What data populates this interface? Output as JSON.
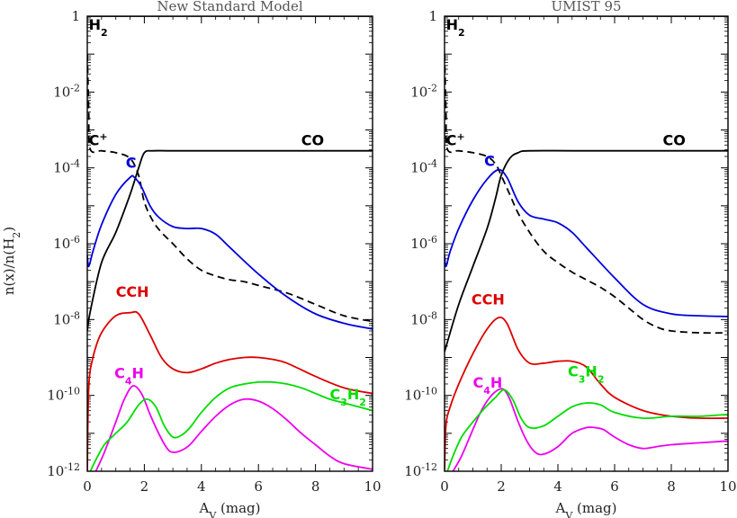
{
  "chart_data": [
    {
      "type": "line",
      "title": "New Standard Model",
      "xlabel": "A_V (mag)",
      "ylabel": "n(x)/n(H2)",
      "xlim": [
        0,
        10
      ],
      "ylim_log10": [
        -12,
        0
      ],
      "yscale": "log",
      "x_ticks": [
        "0",
        "2",
        "4",
        "6",
        "8",
        "10"
      ],
      "y_ticks": [
        "1",
        "10^-2",
        "10^-4",
        "10^-6",
        "10^-8",
        "10^-10",
        "10^-12"
      ],
      "series": [
        {
          "name": "H2",
          "color": "#000000",
          "dash": false,
          "x": [
            0,
            0.1,
            10
          ],
          "log10y": [
            -0.05,
            0,
            0
          ]
        },
        {
          "name": "C+",
          "color": "#000000",
          "dash": true,
          "x": [
            0,
            0.05,
            0.1,
            0.5,
            1.0,
            1.5,
            1.8,
            2.0,
            2.3,
            2.6,
            3.0,
            3.5,
            4.0,
            4.5,
            5.0,
            5.5,
            6.0,
            7.0,
            8.0,
            9.0,
            10.0
          ],
          "log10y": [
            -1.0,
            -2.5,
            -3.5,
            -3.55,
            -3.6,
            -3.75,
            -4.2,
            -4.9,
            -5.4,
            -5.7,
            -6.0,
            -6.4,
            -6.7,
            -6.85,
            -6.95,
            -7.0,
            -7.1,
            -7.3,
            -7.6,
            -7.9,
            -8.05
          ]
        },
        {
          "name": "CO",
          "color": "#000000",
          "dash": false,
          "x": [
            0,
            0.1,
            0.5,
            1.0,
            1.5,
            1.8,
            2.0,
            2.3,
            3.0,
            5.0,
            10.0
          ],
          "log10y": [
            -8.3,
            -7.8,
            -6.5,
            -5.7,
            -4.7,
            -4.0,
            -3.6,
            -3.55,
            -3.55,
            -3.55,
            -3.55
          ]
        },
        {
          "name": "C",
          "color": "#0000dd",
          "dash": false,
          "x": [
            0,
            0.05,
            0.2,
            0.5,
            1.0,
            1.5,
            1.65,
            1.9,
            2.2,
            2.5,
            3.0,
            3.5,
            4.0,
            4.5,
            5.0,
            6.0,
            7.0,
            8.0,
            9.0,
            10.0
          ],
          "log10y": [
            -6.3,
            -6.6,
            -6.2,
            -5.5,
            -4.7,
            -4.25,
            -4.25,
            -4.5,
            -5.0,
            -5.3,
            -5.55,
            -5.6,
            -5.6,
            -5.75,
            -6.1,
            -6.8,
            -7.4,
            -7.85,
            -8.1,
            -8.25
          ]
        },
        {
          "name": "CCH",
          "color": "#dd0000",
          "dash": false,
          "x": [
            0,
            0.05,
            0.2,
            0.5,
            1.0,
            1.5,
            1.8,
            2.2,
            2.6,
            3.0,
            3.5,
            4.0,
            4.5,
            5.0,
            5.5,
            6.0,
            6.5,
            7.0,
            8.0,
            9.0,
            10.0
          ],
          "log10y": [
            -12.0,
            -9.8,
            -9.0,
            -8.35,
            -7.9,
            -7.82,
            -7.85,
            -8.4,
            -9.0,
            -9.3,
            -9.4,
            -9.3,
            -9.15,
            -9.05,
            -9.0,
            -9.0,
            -9.05,
            -9.15,
            -9.5,
            -9.8,
            -9.95
          ]
        },
        {
          "name": "C4H",
          "color": "#ee00ee",
          "dash": false,
          "x": [
            0.3,
            0.6,
            1.0,
            1.3,
            1.6,
            1.9,
            2.2,
            2.5,
            2.8,
            3.0,
            3.3,
            3.6,
            4.0,
            4.5,
            5.0,
            5.5,
            6.0,
            6.5,
            7.0,
            7.5,
            8.0,
            8.5,
            9.0,
            10.0
          ],
          "log10y": [
            -12.0,
            -11.5,
            -10.7,
            -10.1,
            -9.75,
            -9.95,
            -10.5,
            -11.0,
            -11.4,
            -11.5,
            -11.45,
            -11.3,
            -10.95,
            -10.55,
            -10.25,
            -10.1,
            -10.15,
            -10.35,
            -10.65,
            -11.0,
            -11.3,
            -11.6,
            -11.8,
            -11.95
          ]
        },
        {
          "name": "C3H2",
          "color": "#00dd00",
          "dash": false,
          "x": [
            0,
            0.1,
            0.3,
            0.6,
            1.0,
            1.4,
            1.8,
            2.1,
            2.4,
            2.7,
            3.0,
            3.3,
            3.6,
            4.0,
            4.5,
            5.0,
            5.5,
            6.0,
            6.5,
            7.0,
            7.5,
            8.0,
            8.5,
            9.0,
            10.0
          ],
          "log10y": [
            -12.0,
            -12.0,
            -11.7,
            -11.3,
            -11.0,
            -10.7,
            -10.25,
            -10.1,
            -10.3,
            -10.8,
            -11.1,
            -11.05,
            -10.85,
            -10.45,
            -10.05,
            -9.8,
            -9.7,
            -9.65,
            -9.65,
            -9.7,
            -9.8,
            -9.95,
            -10.1,
            -10.2,
            -10.4
          ]
        }
      ],
      "labels": [
        {
          "text": "H",
          "sub": "2",
          "sup": "",
          "color": "#000000",
          "x": 0.05,
          "log10y": -0.35
        },
        {
          "text": "C",
          "sub": "",
          "sup": "+",
          "color": "#000000",
          "x": 0.05,
          "log10y": -3.4
        },
        {
          "text": "CO",
          "sub": "",
          "sup": "",
          "color": "#000000",
          "x": 7.5,
          "log10y": -3.4
        },
        {
          "text": "C",
          "sub": "",
          "sup": "",
          "color": "#0000dd",
          "x": 1.35,
          "log10y": -4.0
        },
        {
          "text": "CCH",
          "sub": "",
          "sup": "",
          "color": "#dd0000",
          "x": 1.0,
          "log10y": -7.4
        },
        {
          "text": "C",
          "sub": "4",
          "sup": "",
          "color": "#ee00ee",
          "x": 0.95,
          "log10y": -9.55,
          "tail": "H"
        },
        {
          "text": "C",
          "sub": "3",
          "sup": "",
          "color": "#00dd00",
          "x": 8.5,
          "log10y": -10.1,
          "tail": "H",
          "tail_sub": "2"
        }
      ]
    },
    {
      "type": "line",
      "title": "UMIST 95",
      "xlabel": "A_V (mag)",
      "ylabel": "",
      "xlim": [
        0,
        10
      ],
      "ylim_log10": [
        -12,
        0
      ],
      "yscale": "log",
      "x_ticks": [
        "0",
        "2",
        "4",
        "6",
        "8",
        "10"
      ],
      "y_ticks": [
        "1",
        "10^-2",
        "10^-4",
        "10^-6",
        "10^-8",
        "10^-10",
        "10^-12"
      ],
      "series": [
        {
          "name": "H2",
          "color": "#000000",
          "dash": false,
          "x": [
            0,
            0.1,
            10
          ],
          "log10y": [
            -0.05,
            0,
            0
          ]
        },
        {
          "name": "C+",
          "color": "#000000",
          "dash": true,
          "x": [
            0,
            0.05,
            0.1,
            0.5,
            1.0,
            1.5,
            1.8,
            2.0,
            2.3,
            2.6,
            3.0,
            3.5,
            4.0,
            4.5,
            5.0,
            5.5,
            6.0,
            6.5,
            7.0,
            7.5,
            8.0,
            9.0,
            10.0
          ],
          "log10y": [
            -1.0,
            -2.5,
            -3.5,
            -3.55,
            -3.6,
            -3.7,
            -3.9,
            -4.2,
            -4.7,
            -5.2,
            -5.7,
            -6.2,
            -6.5,
            -6.75,
            -6.95,
            -7.15,
            -7.4,
            -7.7,
            -8.0,
            -8.2,
            -8.3,
            -8.35,
            -8.35
          ]
        },
        {
          "name": "CO",
          "color": "#000000",
          "dash": false,
          "x": [
            0,
            0.1,
            0.5,
            1.0,
            1.5,
            1.8,
            2.0,
            2.3,
            2.6,
            3.0,
            5.0,
            10.0
          ],
          "log10y": [
            -8.85,
            -8.6,
            -7.6,
            -6.6,
            -5.6,
            -4.8,
            -4.2,
            -3.75,
            -3.6,
            -3.55,
            -3.55,
            -3.55
          ]
        },
        {
          "name": "C",
          "color": "#0000dd",
          "dash": false,
          "x": [
            0,
            0.05,
            0.2,
            0.5,
            1.0,
            1.5,
            1.9,
            2.2,
            2.6,
            3.0,
            3.5,
            4.0,
            4.5,
            5.0,
            6.0,
            7.0,
            8.0,
            9.0,
            10.0
          ],
          "log10y": [
            -6.3,
            -6.6,
            -6.2,
            -5.6,
            -4.85,
            -4.3,
            -4.05,
            -4.25,
            -4.9,
            -5.25,
            -5.35,
            -5.45,
            -5.7,
            -6.1,
            -6.9,
            -7.6,
            -7.85,
            -7.9,
            -7.92
          ]
        },
        {
          "name": "CCH",
          "color": "#dd0000",
          "dash": false,
          "x": [
            0,
            0.05,
            0.2,
            0.5,
            1.0,
            1.5,
            1.9,
            2.2,
            2.6,
            3.0,
            3.5,
            4.0,
            4.5,
            5.0,
            5.5,
            6.0,
            7.0,
            8.0,
            9.0,
            10.0
          ],
          "log10y": [
            -12.0,
            -10.8,
            -10.3,
            -9.7,
            -8.9,
            -8.25,
            -7.95,
            -8.1,
            -8.8,
            -9.15,
            -9.15,
            -9.1,
            -9.1,
            -9.25,
            -9.7,
            -10.05,
            -10.4,
            -10.55,
            -10.6,
            -10.6
          ]
        },
        {
          "name": "C4H",
          "color": "#ee00ee",
          "dash": false,
          "x": [
            0.3,
            0.6,
            1.0,
            1.3,
            1.6,
            1.9,
            2.1,
            2.3,
            2.6,
            2.9,
            3.2,
            3.5,
            4.0,
            4.5,
            5.0,
            5.3,
            5.6,
            6.0,
            6.5,
            7.0,
            7.5,
            8.0,
            9.0,
            10.0
          ],
          "log10y": [
            -12.0,
            -11.6,
            -10.9,
            -10.4,
            -10.05,
            -9.85,
            -9.85,
            -10.1,
            -10.7,
            -11.2,
            -11.5,
            -11.55,
            -11.35,
            -11.0,
            -10.85,
            -10.85,
            -10.9,
            -11.1,
            -11.3,
            -11.4,
            -11.35,
            -11.3,
            -11.25,
            -11.2
          ]
        },
        {
          "name": "C3H2",
          "color": "#00dd00",
          "dash": false,
          "x": [
            0.1,
            0.3,
            0.6,
            1.0,
            1.4,
            1.8,
            2.1,
            2.4,
            2.7,
            3.0,
            3.5,
            4.0,
            4.5,
            5.0,
            5.5,
            6.0,
            7.0,
            8.0,
            9.0,
            10.0
          ],
          "log10y": [
            -12.0,
            -11.6,
            -11.1,
            -10.7,
            -10.35,
            -10.05,
            -9.85,
            -10.1,
            -10.6,
            -10.85,
            -10.8,
            -10.55,
            -10.3,
            -10.2,
            -10.25,
            -10.45,
            -10.6,
            -10.55,
            -10.55,
            -10.5
          ]
        }
      ],
      "labels": [
        {
          "text": "H",
          "sub": "2",
          "sup": "",
          "color": "#000000",
          "x": 0.05,
          "log10y": -0.35
        },
        {
          "text": "C",
          "sub": "",
          "sup": "+",
          "color": "#000000",
          "x": 0.05,
          "log10y": -3.4
        },
        {
          "text": "CO",
          "sub": "",
          "sup": "",
          "color": "#000000",
          "x": 7.7,
          "log10y": -3.4
        },
        {
          "text": "C",
          "sub": "",
          "sup": "",
          "color": "#0000dd",
          "x": 1.4,
          "log10y": -3.95
        },
        {
          "text": "CCH",
          "sub": "",
          "sup": "",
          "color": "#dd0000",
          "x": 0.95,
          "log10y": -7.6
        },
        {
          "text": "C",
          "sub": "4",
          "sup": "",
          "color": "#ee00ee",
          "x": 1.0,
          "log10y": -9.8,
          "tail": "H"
        },
        {
          "text": "C",
          "sub": "3",
          "sup": "",
          "color": "#00dd00",
          "x": 4.35,
          "log10y": -9.5,
          "tail": "H",
          "tail_sub": "2"
        }
      ]
    }
  ],
  "shared_ylabel": "n(x)/n(H",
  "shared_ylabel_sub": "2",
  "shared_ylabel_tail": ")",
  "xlabel_main": "A",
  "xlabel_sub": "V",
  "xlabel_tail": " (mag)"
}
